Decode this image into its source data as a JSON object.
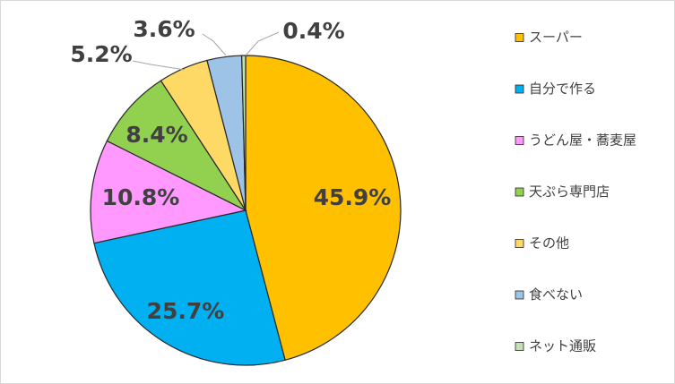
{
  "chart_data": {
    "type": "pie",
    "title": "",
    "categories": [
      "スーパー",
      "自分で作る",
      "うどん屋・蕎麦屋",
      "天ぷら専門店",
      "その他",
      "食べない",
      "ネット通販"
    ],
    "values": [
      45.9,
      25.7,
      10.8,
      8.4,
      5.2,
      3.6,
      0.4
    ],
    "data_labels": [
      "45.9%",
      "25.7%",
      "10.8%",
      "8.4%",
      "5.2%",
      "3.6%",
      "0.4%"
    ],
    "colors": [
      "#FFC000",
      "#00B0F0",
      "#FF99FF",
      "#92D050",
      "#FFD966",
      "#9DC3E6",
      "#C5E0B4"
    ],
    "legend_position": "right",
    "start_angle": "12-o'clock",
    "direction": "clockwise"
  }
}
